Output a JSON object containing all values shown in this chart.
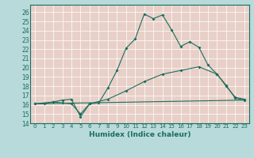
{
  "xlabel": "Humidex (Indice chaleur)",
  "bg_color": "#b8dada",
  "plot_bg_color": "#e8d0c8",
  "line_color": "#1a6e5e",
  "grid_color": "#ffffff",
  "xlim": [
    -0.5,
    23.5
  ],
  "ylim": [
    14,
    26.8
  ],
  "yticks": [
    14,
    15,
    16,
    17,
    18,
    19,
    20,
    21,
    22,
    23,
    24,
    25,
    26
  ],
  "xticks": [
    0,
    1,
    2,
    3,
    4,
    5,
    6,
    7,
    8,
    9,
    10,
    11,
    12,
    13,
    14,
    15,
    16,
    17,
    18,
    19,
    20,
    21,
    22,
    23
  ],
  "line1_x": [
    0,
    1,
    2,
    3,
    4,
    5,
    6,
    7,
    8,
    9,
    10,
    11,
    12,
    13,
    14,
    15,
    16,
    17,
    18,
    19,
    20,
    21,
    22,
    23
  ],
  "line1_y": [
    16.1,
    16.1,
    16.3,
    16.2,
    16.1,
    15.0,
    16.1,
    16.2,
    17.8,
    19.7,
    22.1,
    23.1,
    25.8,
    25.3,
    25.7,
    24.1,
    22.3,
    22.8,
    22.2,
    20.3,
    19.3,
    18.1,
    16.7,
    16.5
  ],
  "line2_x": [
    0,
    2,
    3,
    4,
    5,
    6,
    8,
    10,
    12,
    14,
    16,
    18,
    20,
    21,
    22,
    23
  ],
  "line2_y": [
    16.1,
    16.3,
    16.5,
    16.6,
    14.7,
    16.1,
    16.6,
    17.5,
    18.5,
    19.3,
    19.7,
    20.1,
    19.3,
    18.0,
    16.8,
    16.6
  ],
  "line3_x": [
    0,
    23
  ],
  "line3_y": [
    16.1,
    16.5
  ],
  "marker1_x": [
    0,
    1,
    2,
    3,
    4,
    5,
    6,
    7,
    8,
    9,
    10,
    11,
    12,
    13,
    14,
    15,
    16,
    17,
    18,
    19,
    20,
    21,
    22,
    23
  ],
  "marker1_y": [
    16.1,
    16.1,
    16.3,
    16.2,
    16.1,
    15.0,
    16.1,
    16.2,
    17.8,
    19.7,
    22.1,
    23.1,
    25.8,
    25.3,
    25.7,
    24.1,
    22.3,
    22.8,
    22.2,
    20.3,
    19.3,
    18.1,
    16.7,
    16.5
  ]
}
